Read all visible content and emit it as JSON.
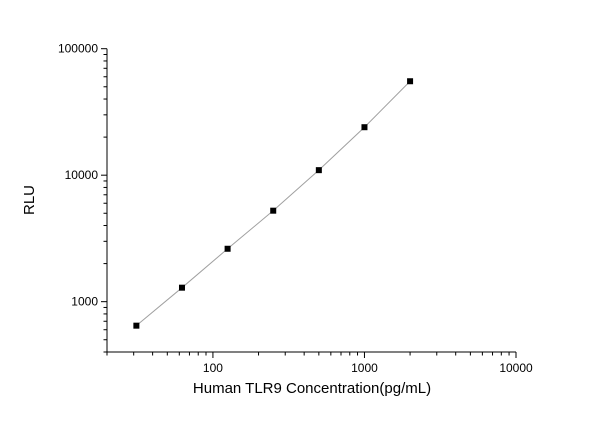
{
  "chart_data": {
    "type": "scatter",
    "title": "",
    "xlabel": "Human TLR9 Concentration(pg/mL)",
    "ylabel": "RLU",
    "xscale": "log",
    "yscale": "log",
    "xlim": [
      20,
      10000
    ],
    "ylim": [
      400,
      100000
    ],
    "xticks": [
      "100",
      "1000",
      "10000"
    ],
    "yticks": [
      "1000",
      "10000",
      "100000"
    ],
    "grid": false,
    "legend": "none",
    "marker": "square",
    "marker_color": "#000000",
    "line_color": "#a0a0a0",
    "series": [
      {
        "x": [
          31.25,
          62.5,
          125,
          250,
          500,
          1000,
          2000
        ],
        "y": [
          646,
          1290,
          2620,
          5240,
          10960,
          23950,
          55300
        ]
      }
    ]
  }
}
